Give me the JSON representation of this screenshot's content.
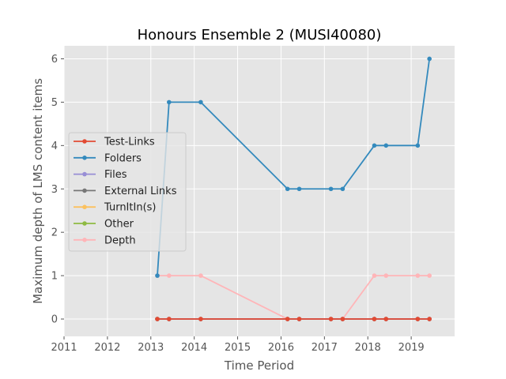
{
  "chart_data": {
    "type": "line",
    "title": "Honours Ensemble 2 (MUSI40080)",
    "xlabel": "Time Period",
    "ylabel": "Maximum depth of LMS content items",
    "xlim": [
      2011,
      2020
    ],
    "ylim": [
      -0.4,
      6.3
    ],
    "xticks": [
      2011,
      2012,
      2013,
      2014,
      2015,
      2016,
      2017,
      2018,
      2019
    ],
    "yticks": [
      0,
      1,
      2,
      3,
      4,
      5,
      6
    ],
    "x": [
      2013.15,
      2013.42,
      2014.15,
      2016.15,
      2016.42,
      2017.15,
      2017.42,
      2018.15,
      2018.42,
      2019.15,
      2019.42
    ],
    "grid": true,
    "legend_position": "center-left",
    "series": [
      {
        "name": "Test-Links",
        "color": "#e24a33",
        "values": [
          0,
          0,
          0,
          0,
          0,
          0,
          0,
          0,
          0,
          0,
          0
        ]
      },
      {
        "name": "Folders",
        "color": "#348abd",
        "values": [
          1,
          5,
          5,
          3,
          3,
          3,
          3,
          4,
          4,
          4,
          6
        ]
      },
      {
        "name": "Files",
        "color": "#988ed5",
        "values": [
          0,
          0,
          0,
          0,
          0,
          0,
          0,
          0,
          0,
          0,
          0
        ]
      },
      {
        "name": "External Links",
        "color": "#777777",
        "values": [
          0,
          0,
          0,
          0,
          0,
          0,
          0,
          0,
          0,
          0,
          0
        ]
      },
      {
        "name": "TurnItIn(s)",
        "color": "#fbc15e",
        "values": [
          0,
          0,
          0,
          0,
          0,
          0,
          0,
          0,
          0,
          0,
          0
        ]
      },
      {
        "name": "Other",
        "color": "#8eba42",
        "values": [
          0,
          0,
          0,
          0,
          0,
          0,
          0,
          0,
          0,
          0,
          0
        ]
      },
      {
        "name": "Depth",
        "color": "#ffb5b8",
        "values": [
          1,
          1,
          1,
          0,
          0,
          0,
          0,
          1,
          1,
          1,
          1
        ]
      }
    ],
    "draw_order": [
      "Depth",
      "Other",
      "TurnItIn(s)",
      "External Links",
      "Files",
      "Folders",
      "Test-Links"
    ]
  }
}
